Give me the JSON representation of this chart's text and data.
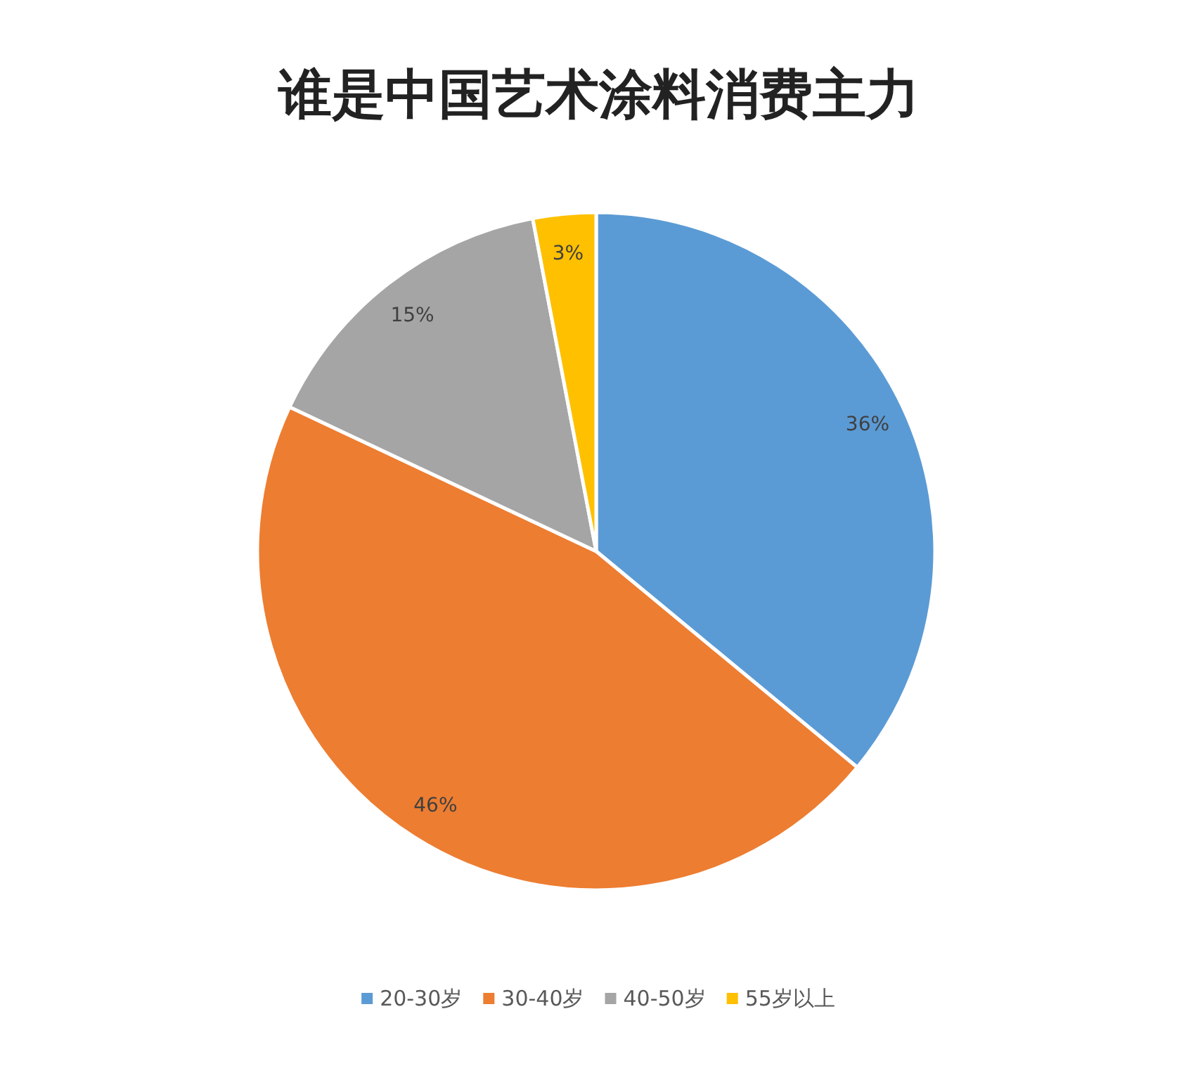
{
  "chart_data": {
    "type": "pie",
    "title": "谁是中国艺术涂料消费主力",
    "categories": [
      "20-30岁",
      "30-40岁",
      "40-50岁",
      "55岁以上"
    ],
    "values": [
      36,
      46,
      15,
      3
    ],
    "colors": [
      "#5b9bd5",
      "#ed7d31",
      "#a5a5a5",
      "#ffc000"
    ],
    "value_labels": [
      "36%",
      "46%",
      "15%",
      "3%"
    ],
    "legend": "bottom"
  }
}
